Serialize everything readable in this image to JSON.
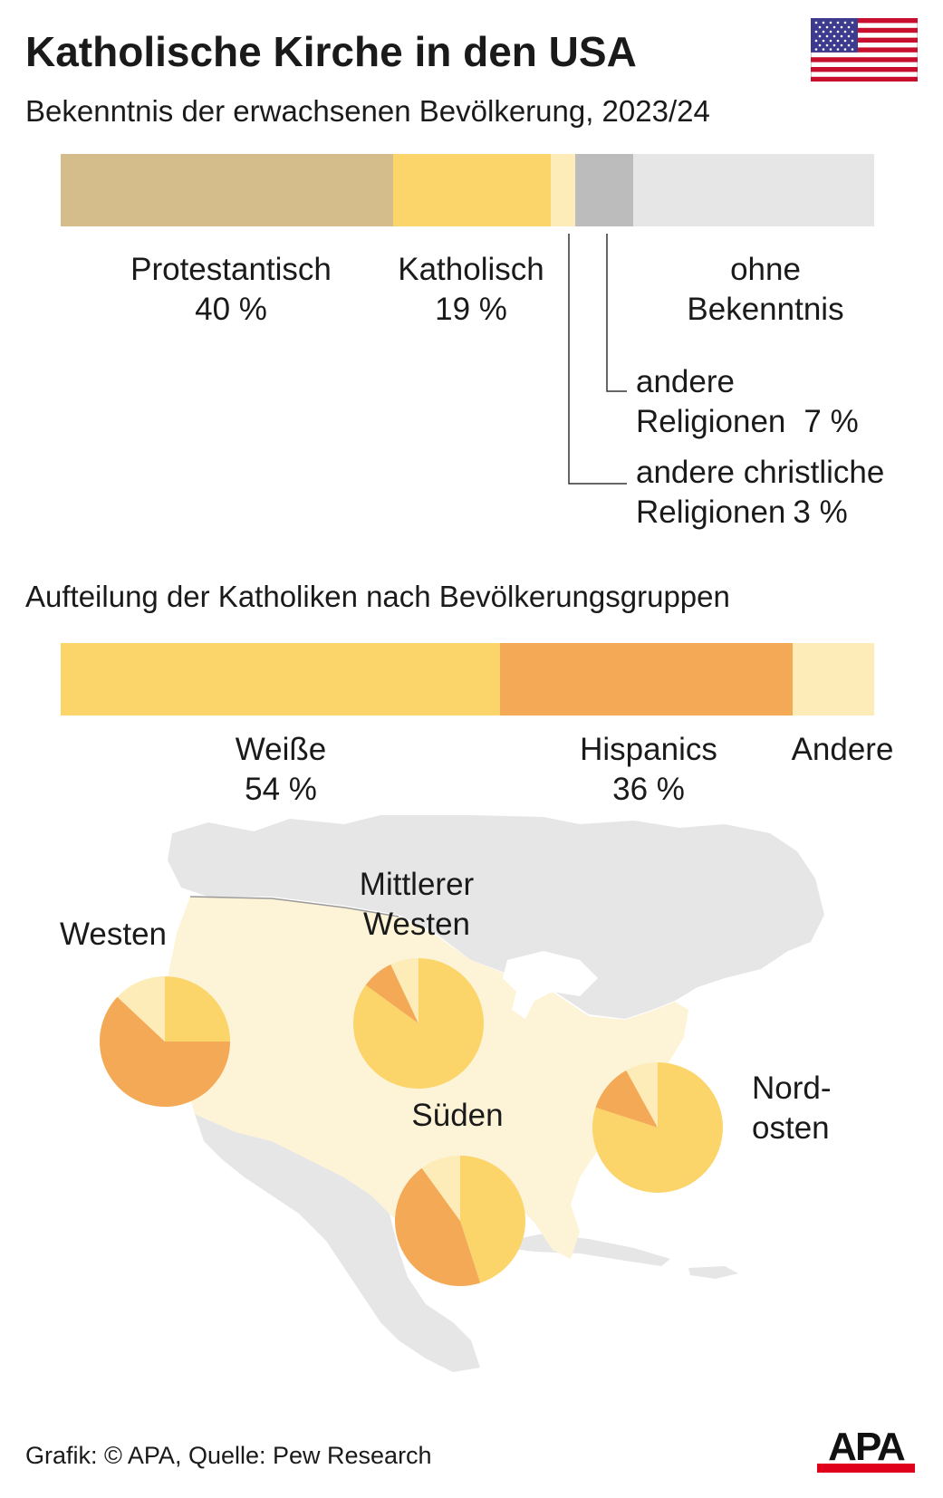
{
  "header": {
    "title": "Katholische Kirche in den USA",
    "subtitle": "Bekenntnis der erwachsenen Bevölkerung, 2023/24",
    "flag_icon": "us-flag-icon"
  },
  "section2": {
    "title": "Aufteilung der Katholiken nach Bevölkerungsgruppen"
  },
  "colors": {
    "protestant": "#d4bd8a",
    "catholic": "#fbd46a",
    "other_christian": "#fdebb8",
    "other_religions": "#bcbcbc",
    "none": "#e6e6e6",
    "white": "#fbd46a",
    "hispanic": "#f4a956",
    "other": "#fdebb8",
    "map_land": "#e6e6e6",
    "map_usa": "#fdf3d6"
  },
  "chart_data": [
    {
      "type": "bar",
      "stacked": true,
      "orientation": "horizontal",
      "categories": [
        "Protestantisch",
        "Katholisch",
        "andere christliche Religionen",
        "andere Religionen",
        "ohne Bekenntnis"
      ],
      "values": [
        40,
        19,
        3,
        7,
        29
      ],
      "value_labels": [
        "40 %",
        "19 %",
        "3 %",
        "7 %",
        ""
      ],
      "labels_text": {
        "protestant": "Protestantisch",
        "catholic": "Katholisch",
        "none_line1": "ohne",
        "none_line2": "Bekenntnis",
        "other_rel_line1": "andere",
        "other_rel_line2": "Religionen",
        "other_chr_line1": "andere christliche",
        "other_chr_line2": "Religionen"
      }
    },
    {
      "type": "bar",
      "stacked": true,
      "orientation": "horizontal",
      "categories": [
        "Weiße",
        "Hispanics",
        "Andere"
      ],
      "values": [
        54,
        36,
        10
      ],
      "value_labels": [
        "54 %",
        "36 %",
        ""
      ]
    },
    {
      "type": "pie",
      "series_order": [
        "Weiße",
        "Hispanics",
        "Andere"
      ],
      "regions": [
        {
          "name": "Westen",
          "label_lines": [
            "Westen"
          ],
          "values": [
            25,
            62,
            13
          ]
        },
        {
          "name": "Mittlerer Westen",
          "label_lines": [
            "Mittlerer",
            "Westen"
          ],
          "values": [
            85,
            8,
            7
          ]
        },
        {
          "name": "Süden",
          "label_lines": [
            "Süden"
          ],
          "values": [
            45,
            45,
            10
          ]
        },
        {
          "name": "Nordosten",
          "label_lines": [
            "Nord-",
            "osten"
          ],
          "values": [
            80,
            12,
            8
          ]
        }
      ]
    }
  ],
  "footer": {
    "source": "Grafik: © APA, Quelle: Pew Research",
    "logo_text": "APA"
  }
}
